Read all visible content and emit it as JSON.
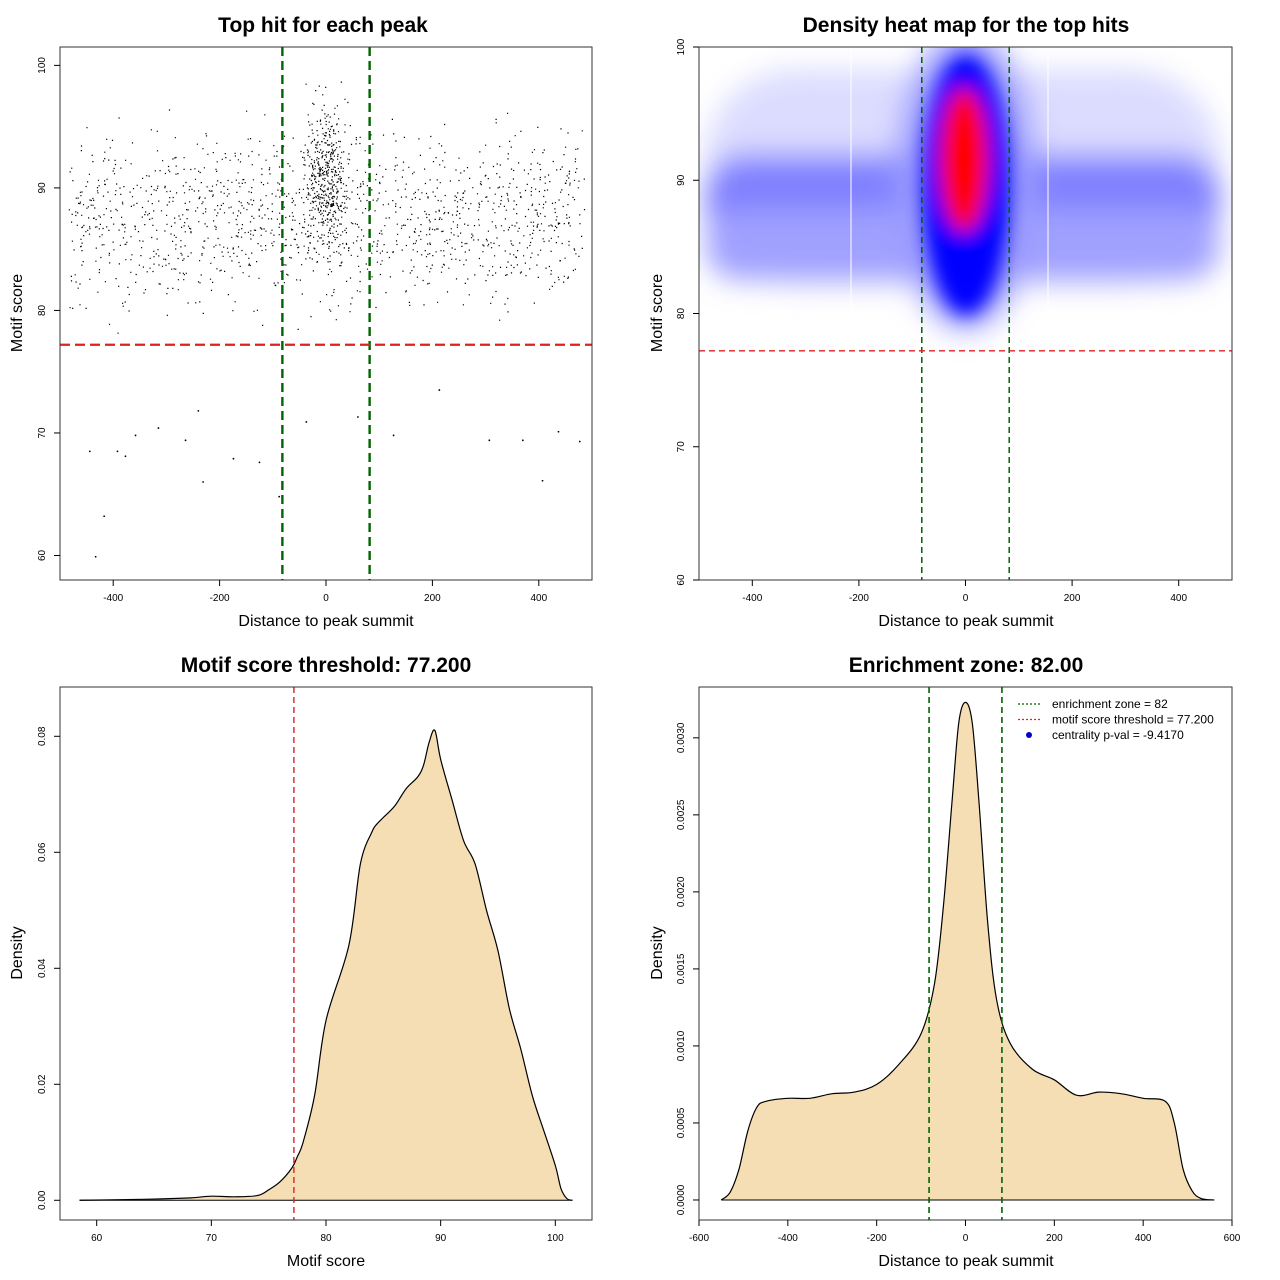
{
  "chart_data": [
    {
      "type": "scatter",
      "title": "Top hit for each peak",
      "xlabel": "Distance to peak summit",
      "ylabel": "Motif score",
      "xlim": [
        -500,
        500
      ],
      "ylim": [
        58,
        101.5
      ],
      "xticks": [
        -400,
        -200,
        0,
        200,
        400
      ],
      "yticks": [
        60,
        70,
        80,
        90,
        100
      ],
      "tick_labels_x": [
        "-400",
        "-200",
        "0",
        "200",
        "400"
      ],
      "tick_labels_y": [
        "60",
        "70",
        "80",
        "90",
        "100"
      ],
      "point_color": "#000000",
      "vlines": [
        -82,
        82
      ],
      "vline_color": "#006400",
      "hline": 77.2,
      "hline_color": "#dd2222",
      "points_sample": [
        {
          "x": -433,
          "y": 59.9
        },
        {
          "x": -417,
          "y": 63.2
        },
        {
          "x": -444,
          "y": 68.5
        },
        {
          "x": -392,
          "y": 68.5
        },
        {
          "x": -377,
          "y": 68.1
        },
        {
          "x": -358,
          "y": 69.8
        },
        {
          "x": -315,
          "y": 70.4
        },
        {
          "x": -264,
          "y": 69.4
        },
        {
          "x": -240,
          "y": 71.8
        },
        {
          "x": -231,
          "y": 66.0
        },
        {
          "x": -174,
          "y": 67.9
        },
        {
          "x": -125,
          "y": 67.6
        },
        {
          "x": -88,
          "y": 64.8
        },
        {
          "x": -37,
          "y": 70.9
        },
        {
          "x": 60,
          "y": 71.3
        },
        {
          "x": 127,
          "y": 69.8
        },
        {
          "x": 213,
          "y": 73.5
        },
        {
          "x": 307,
          "y": 69.4
        },
        {
          "x": 370,
          "y": 69.4
        },
        {
          "x": 407,
          "y": 66.1
        },
        {
          "x": 437,
          "y": 70.1
        },
        {
          "x": 477,
          "y": 69.3
        }
      ]
    },
    {
      "type": "heatmap",
      "title": "Density heat map for the top hits",
      "xlabel": "Distance to peak summit",
      "ylabel": "Motif score",
      "xlim": [
        -500,
        500
      ],
      "ylim": [
        60,
        100
      ],
      "xticks": [
        -400,
        -200,
        0,
        200,
        400
      ],
      "yticks": [
        60,
        70,
        80,
        90,
        100
      ],
      "tick_labels_x": [
        "-400",
        "-200",
        "0",
        "200",
        "400"
      ],
      "tick_labels_y": [
        "60",
        "70",
        "80",
        "90",
        "100"
      ],
      "color_scale": [
        "#ffffff",
        "#0000ff",
        "#ff0000"
      ],
      "vlines": [
        -82,
        82
      ],
      "vline_color": "#006400",
      "hline": 77.2,
      "hline_color": "#dd2222"
    },
    {
      "type": "area",
      "title": "Motif score threshold: 77.200",
      "xlabel": "Motif score",
      "ylabel": "Density",
      "xlim": [
        56.8,
        103.2
      ],
      "ylim": [
        -0.0034,
        0.0885
      ],
      "xticks": [
        60,
        70,
        80,
        90,
        100
      ],
      "yticks": [
        0.0,
        0.02,
        0.04,
        0.06,
        0.08
      ],
      "tick_labels_x": [
        "60",
        "70",
        "80",
        "90",
        "100"
      ],
      "tick_labels_y": [
        "0.00",
        "0.02",
        "0.04",
        "0.06",
        "0.08"
      ],
      "fill_color": "#f5deb3",
      "vline": 77.2,
      "vline_color": "#dd2222",
      "x": [
        58.5,
        62,
        65,
        68,
        70,
        72,
        74,
        75,
        76,
        77,
        77.5,
        78,
        79,
        80,
        82,
        83,
        84,
        84.5,
        85,
        86,
        87,
        88,
        88.5,
        89,
        89.5,
        90,
        91,
        92,
        93,
        94,
        95,
        96,
        97,
        98,
        99,
        100,
        100.5,
        101,
        101.5
      ],
      "y": [
        0.0,
        0.0001,
        0.0002,
        0.0004,
        0.0007,
        0.0006,
        0.0008,
        0.0018,
        0.0032,
        0.0055,
        0.0075,
        0.01,
        0.018,
        0.031,
        0.044,
        0.058,
        0.0635,
        0.065,
        0.066,
        0.068,
        0.071,
        0.073,
        0.075,
        0.079,
        0.081,
        0.076,
        0.069,
        0.062,
        0.058,
        0.05,
        0.043,
        0.033,
        0.026,
        0.018,
        0.012,
        0.006,
        0.002,
        0.0003,
        0.0
      ]
    },
    {
      "type": "area",
      "title": "Enrichment zone: 82.00",
      "xlabel": "Distance to peak summit",
      "ylabel": "Density",
      "xlim": [
        -600,
        600
      ],
      "ylim": [
        -0.00013,
        0.00333
      ],
      "xticks": [
        -600,
        -400,
        -200,
        0,
        200,
        400,
        600
      ],
      "yticks": [
        0.0,
        0.0005,
        0.001,
        0.0015,
        0.002,
        0.0025,
        0.003
      ],
      "tick_labels_x": [
        "-600",
        "-400",
        "-200",
        "0",
        "200",
        "400",
        "600"
      ],
      "tick_labels_y": [
        "0.0000",
        "0.0005",
        "0.0010",
        "0.0015",
        "0.0020",
        "0.0025",
        "0.0030"
      ],
      "fill_color": "#f5deb3",
      "vlines": [
        -82,
        82
      ],
      "vline_color": "#006400",
      "x": [
        -550,
        -530,
        -510,
        -490,
        -470,
        -450,
        -400,
        -350,
        -300,
        -250,
        -200,
        -150,
        -100,
        -70,
        -50,
        -30,
        -15,
        0,
        15,
        30,
        50,
        70,
        100,
        150,
        200,
        250,
        300,
        350,
        400,
        450,
        470,
        490,
        510,
        530,
        560
      ],
      "y": [
        0.0,
        5e-05,
        0.0002,
        0.00045,
        0.0006,
        0.00064,
        0.00066,
        0.00066,
        0.00069,
        0.0007,
        0.00075,
        0.00088,
        0.00108,
        0.0014,
        0.0019,
        0.0026,
        0.0031,
        0.00323,
        0.0031,
        0.0026,
        0.0018,
        0.0013,
        0.00102,
        0.00085,
        0.00078,
        0.00068,
        0.0007,
        0.00069,
        0.00066,
        0.00064,
        0.0005,
        0.0002,
        6e-05,
        1e-05,
        0.0
      ],
      "legend": [
        {
          "label": "enrichment zone = 82",
          "kind": "dotted-line",
          "color": "#006400"
        },
        {
          "label": "motif score threshold = 77.200",
          "kind": "dotted-line",
          "color": "#dd2222"
        },
        {
          "label": "centrality p-val = -9.4170",
          "kind": "point",
          "color": "#0000cc"
        }
      ],
      "legend_position": "top-right"
    }
  ]
}
